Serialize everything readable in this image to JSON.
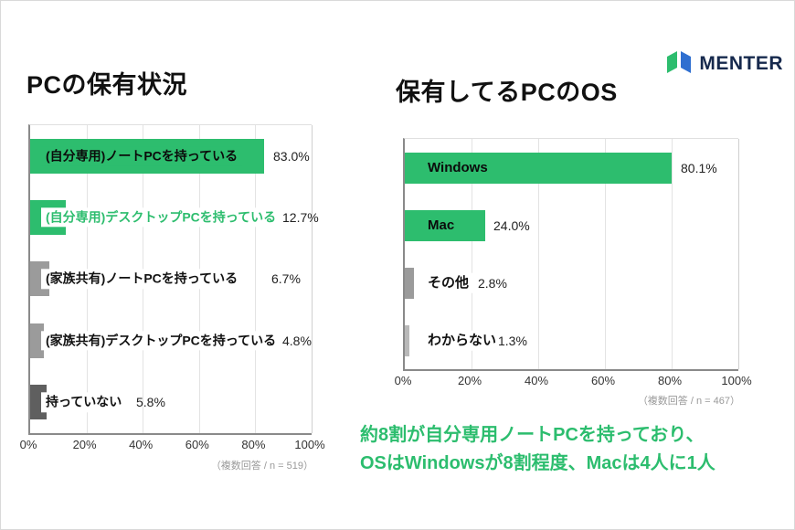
{
  "logo": {
    "text": "MENTER"
  },
  "annotation": {
    "line1": "約8割が自分専用ノートPCを持っており、",
    "line2": "OSはWindowsが8割程度、Macは4人に1人"
  },
  "colors": {
    "brand_green": "#2dbd6e",
    "logo_navy": "#16294d",
    "logo_blue": "#2f6fd0",
    "bar_gray": "#9b9b9b",
    "bar_dark_gray": "#5f5f5f",
    "bar_light_gray": "#b9b9b9"
  },
  "chart_data": [
    {
      "type": "bar",
      "orientation": "horizontal",
      "title": "PCの保有状況",
      "categories": [
        "(自分専用)ノートPCを持っている",
        "(自分専用)デスクトップPCを持っている",
        "(家族共有)ノートPCを持っている",
        "(家族共有)デスクトップPCを持っている",
        "持っていない"
      ],
      "values": [
        83.0,
        12.7,
        6.7,
        4.8,
        5.8
      ],
      "value_labels": [
        "83.0%",
        "12.7%",
        "6.7%",
        "4.8%",
        "5.8%"
      ],
      "bar_colors": [
        "#2dbd6e",
        "#2dbd6e",
        "#9b9b9b",
        "#9b9b9b",
        "#5f5f5f"
      ],
      "xlim": [
        0,
        100
      ],
      "x_ticks": [
        "0%",
        "20%",
        "40%",
        "60%",
        "80%",
        "100%"
      ],
      "grid": true,
      "note": "（複数回答 / n = 519）"
    },
    {
      "type": "bar",
      "orientation": "horizontal",
      "title": "保有してるPCのOS",
      "categories": [
        "Windows",
        "Mac",
        "その他",
        "わからない"
      ],
      "values": [
        80.1,
        24.0,
        2.8,
        1.3
      ],
      "value_labels": [
        "80.1%",
        "24.0%",
        "2.8%",
        "1.3%"
      ],
      "bar_colors": [
        "#2dbd6e",
        "#2dbd6e",
        "#9b9b9b",
        "#b9b9b9"
      ],
      "xlim": [
        0,
        100
      ],
      "x_ticks": [
        "0%",
        "20%",
        "40%",
        "60%",
        "80%",
        "100%"
      ],
      "grid": true,
      "note": "（複数回答 / n = 467）"
    }
  ]
}
